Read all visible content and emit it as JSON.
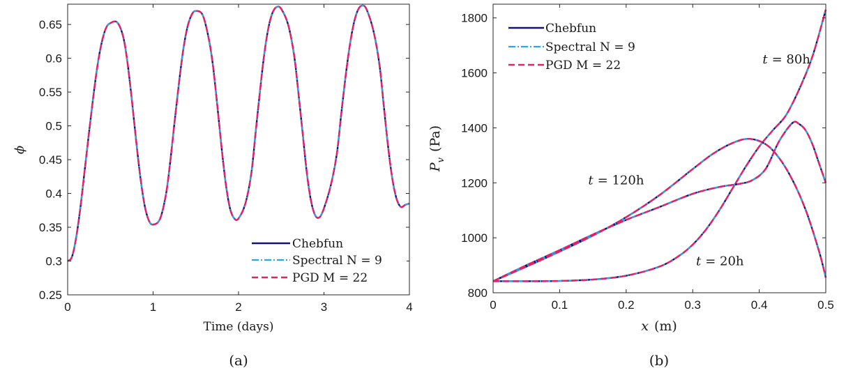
{
  "chart_data": [
    {
      "type": "line",
      "xlabel": "Time (days)",
      "ylabel": "ϕ",
      "caption": "(a)",
      "xlim": [
        0,
        4
      ],
      "ylim": [
        0.25,
        0.68
      ],
      "xticks": [
        0,
        1,
        2,
        3,
        4
      ],
      "xtick_labels": [
        "0",
        "1",
        "2",
        "3",
        "4"
      ],
      "yticks": [
        0.25,
        0.3,
        0.35,
        0.4,
        0.45,
        0.5,
        0.55,
        0.6,
        0.65
      ],
      "ytick_labels": [
        "0.25",
        "0.3",
        "0.35",
        "0.4",
        "0.45",
        "0.5",
        "0.55",
        "0.6",
        "0.65"
      ],
      "legend_position": "bottom-right",
      "grid": false,
      "series": [
        {
          "name": "Chebfun",
          "color": "#14146e",
          "style": "solid"
        },
        {
          "name": "Spectral N = 9",
          "color": "#2aa6e6",
          "style": "dashdot"
        },
        {
          "name": "PGD M = 22",
          "color": "#e8206a",
          "style": "dashed"
        }
      ],
      "x": [
        0,
        0.05,
        0.1,
        0.15,
        0.2,
        0.25,
        0.3,
        0.35,
        0.4,
        0.45,
        0.5,
        0.58,
        0.65,
        0.7,
        0.75,
        0.8,
        0.85,
        0.9,
        0.95,
        1.0,
        1.08,
        1.15,
        1.2,
        1.25,
        1.3,
        1.35,
        1.4,
        1.45,
        1.5,
        1.58,
        1.65,
        1.7,
        1.75,
        1.8,
        1.85,
        1.9,
        1.95,
        2.0,
        2.08,
        2.15,
        2.2,
        2.25,
        2.3,
        2.35,
        2.4,
        2.45,
        2.5,
        2.58,
        2.65,
        2.7,
        2.75,
        2.8,
        2.85,
        2.9,
        2.95,
        3.0,
        3.08,
        3.15,
        3.2,
        3.25,
        3.3,
        3.35,
        3.4,
        3.45,
        3.5,
        3.58,
        3.65,
        3.7,
        3.75,
        3.8,
        3.85,
        3.9,
        3.95,
        4.0
      ],
      "y": [
        0.3,
        0.306,
        0.335,
        0.38,
        0.435,
        0.49,
        0.543,
        0.59,
        0.624,
        0.645,
        0.652,
        0.653,
        0.632,
        0.594,
        0.54,
        0.48,
        0.425,
        0.383,
        0.36,
        0.354,
        0.362,
        0.398,
        0.446,
        0.504,
        0.56,
        0.61,
        0.645,
        0.664,
        0.67,
        0.664,
        0.63,
        0.59,
        0.532,
        0.47,
        0.415,
        0.378,
        0.363,
        0.363,
        0.385,
        0.43,
        0.49,
        0.55,
        0.605,
        0.645,
        0.668,
        0.676,
        0.673,
        0.65,
        0.605,
        0.55,
        0.49,
        0.43,
        0.388,
        0.367,
        0.365,
        0.378,
        0.412,
        0.458,
        0.515,
        0.57,
        0.617,
        0.652,
        0.672,
        0.678,
        0.672,
        0.64,
        0.59,
        0.53,
        0.47,
        0.422,
        0.392,
        0.38,
        0.383,
        0.385
      ]
    },
    {
      "type": "line",
      "xlabel_var": "x",
      "xlabel_unit": "(m)",
      "ylabel_var": "P",
      "ylabel_sub": "v",
      "ylabel_unit": "(Pa)",
      "caption": "(b)",
      "xlim": [
        0,
        0.5
      ],
      "ylim": [
        800,
        1850
      ],
      "xticks": [
        0,
        0.1,
        0.2,
        0.3,
        0.4,
        0.5
      ],
      "xtick_labels": [
        "0",
        "0.1",
        "0.2",
        "0.3",
        "0.4",
        "0.5"
      ],
      "yticks": [
        800,
        1000,
        1200,
        1400,
        1600,
        1800
      ],
      "ytick_labels": [
        "800",
        "1000",
        "1200",
        "1400",
        "1600",
        "1800"
      ],
      "legend_position": "top-left",
      "grid": false,
      "series": [
        {
          "name": "Chebfun",
          "color": "#14146e",
          "style": "solid"
        },
        {
          "name": "Spectral N = 9",
          "color": "#2aa6e6",
          "style": "dashdot"
        },
        {
          "name": "PGD M = 22",
          "color": "#e8206a",
          "style": "dashed"
        }
      ],
      "profiles": [
        {
          "var": "t",
          "label": "= 20h",
          "label_x": 0.305,
          "label_y": 900,
          "x": [
            0,
            0.05,
            0.1,
            0.15,
            0.2,
            0.25,
            0.28,
            0.3,
            0.32,
            0.34,
            0.36,
            0.38,
            0.4,
            0.42,
            0.44,
            0.46,
            0.48,
            0.5
          ],
          "y": [
            842,
            842,
            843,
            848,
            862,
            895,
            935,
            975,
            1030,
            1100,
            1180,
            1260,
            1332,
            1390,
            1445,
            1540,
            1660,
            1830
          ]
        },
        {
          "var": "t",
          "label": "= 80h",
          "label_x": 0.405,
          "label_y": 1635,
          "x": [
            0,
            0.05,
            0.1,
            0.15,
            0.2,
            0.25,
            0.3,
            0.34,
            0.37,
            0.39,
            0.41,
            0.43,
            0.45,
            0.46,
            0.47,
            0.48,
            0.49,
            0.5
          ],
          "y": [
            842,
            900,
            955,
            1012,
            1065,
            1112,
            1160,
            1185,
            1196,
            1210,
            1252,
            1352,
            1418,
            1414,
            1390,
            1340,
            1270,
            1200
          ]
        },
        {
          "var": "t",
          "label": "= 120h",
          "label_x": 0.143,
          "label_y": 1195,
          "x": [
            0,
            0.05,
            0.1,
            0.15,
            0.2,
            0.25,
            0.3,
            0.33,
            0.36,
            0.385,
            0.41,
            0.43,
            0.45,
            0.47,
            0.49,
            0.5
          ],
          "y": [
            842,
            895,
            950,
            1008,
            1075,
            1155,
            1250,
            1305,
            1345,
            1360,
            1340,
            1290,
            1210,
            1100,
            950,
            855
          ]
        }
      ]
    }
  ]
}
